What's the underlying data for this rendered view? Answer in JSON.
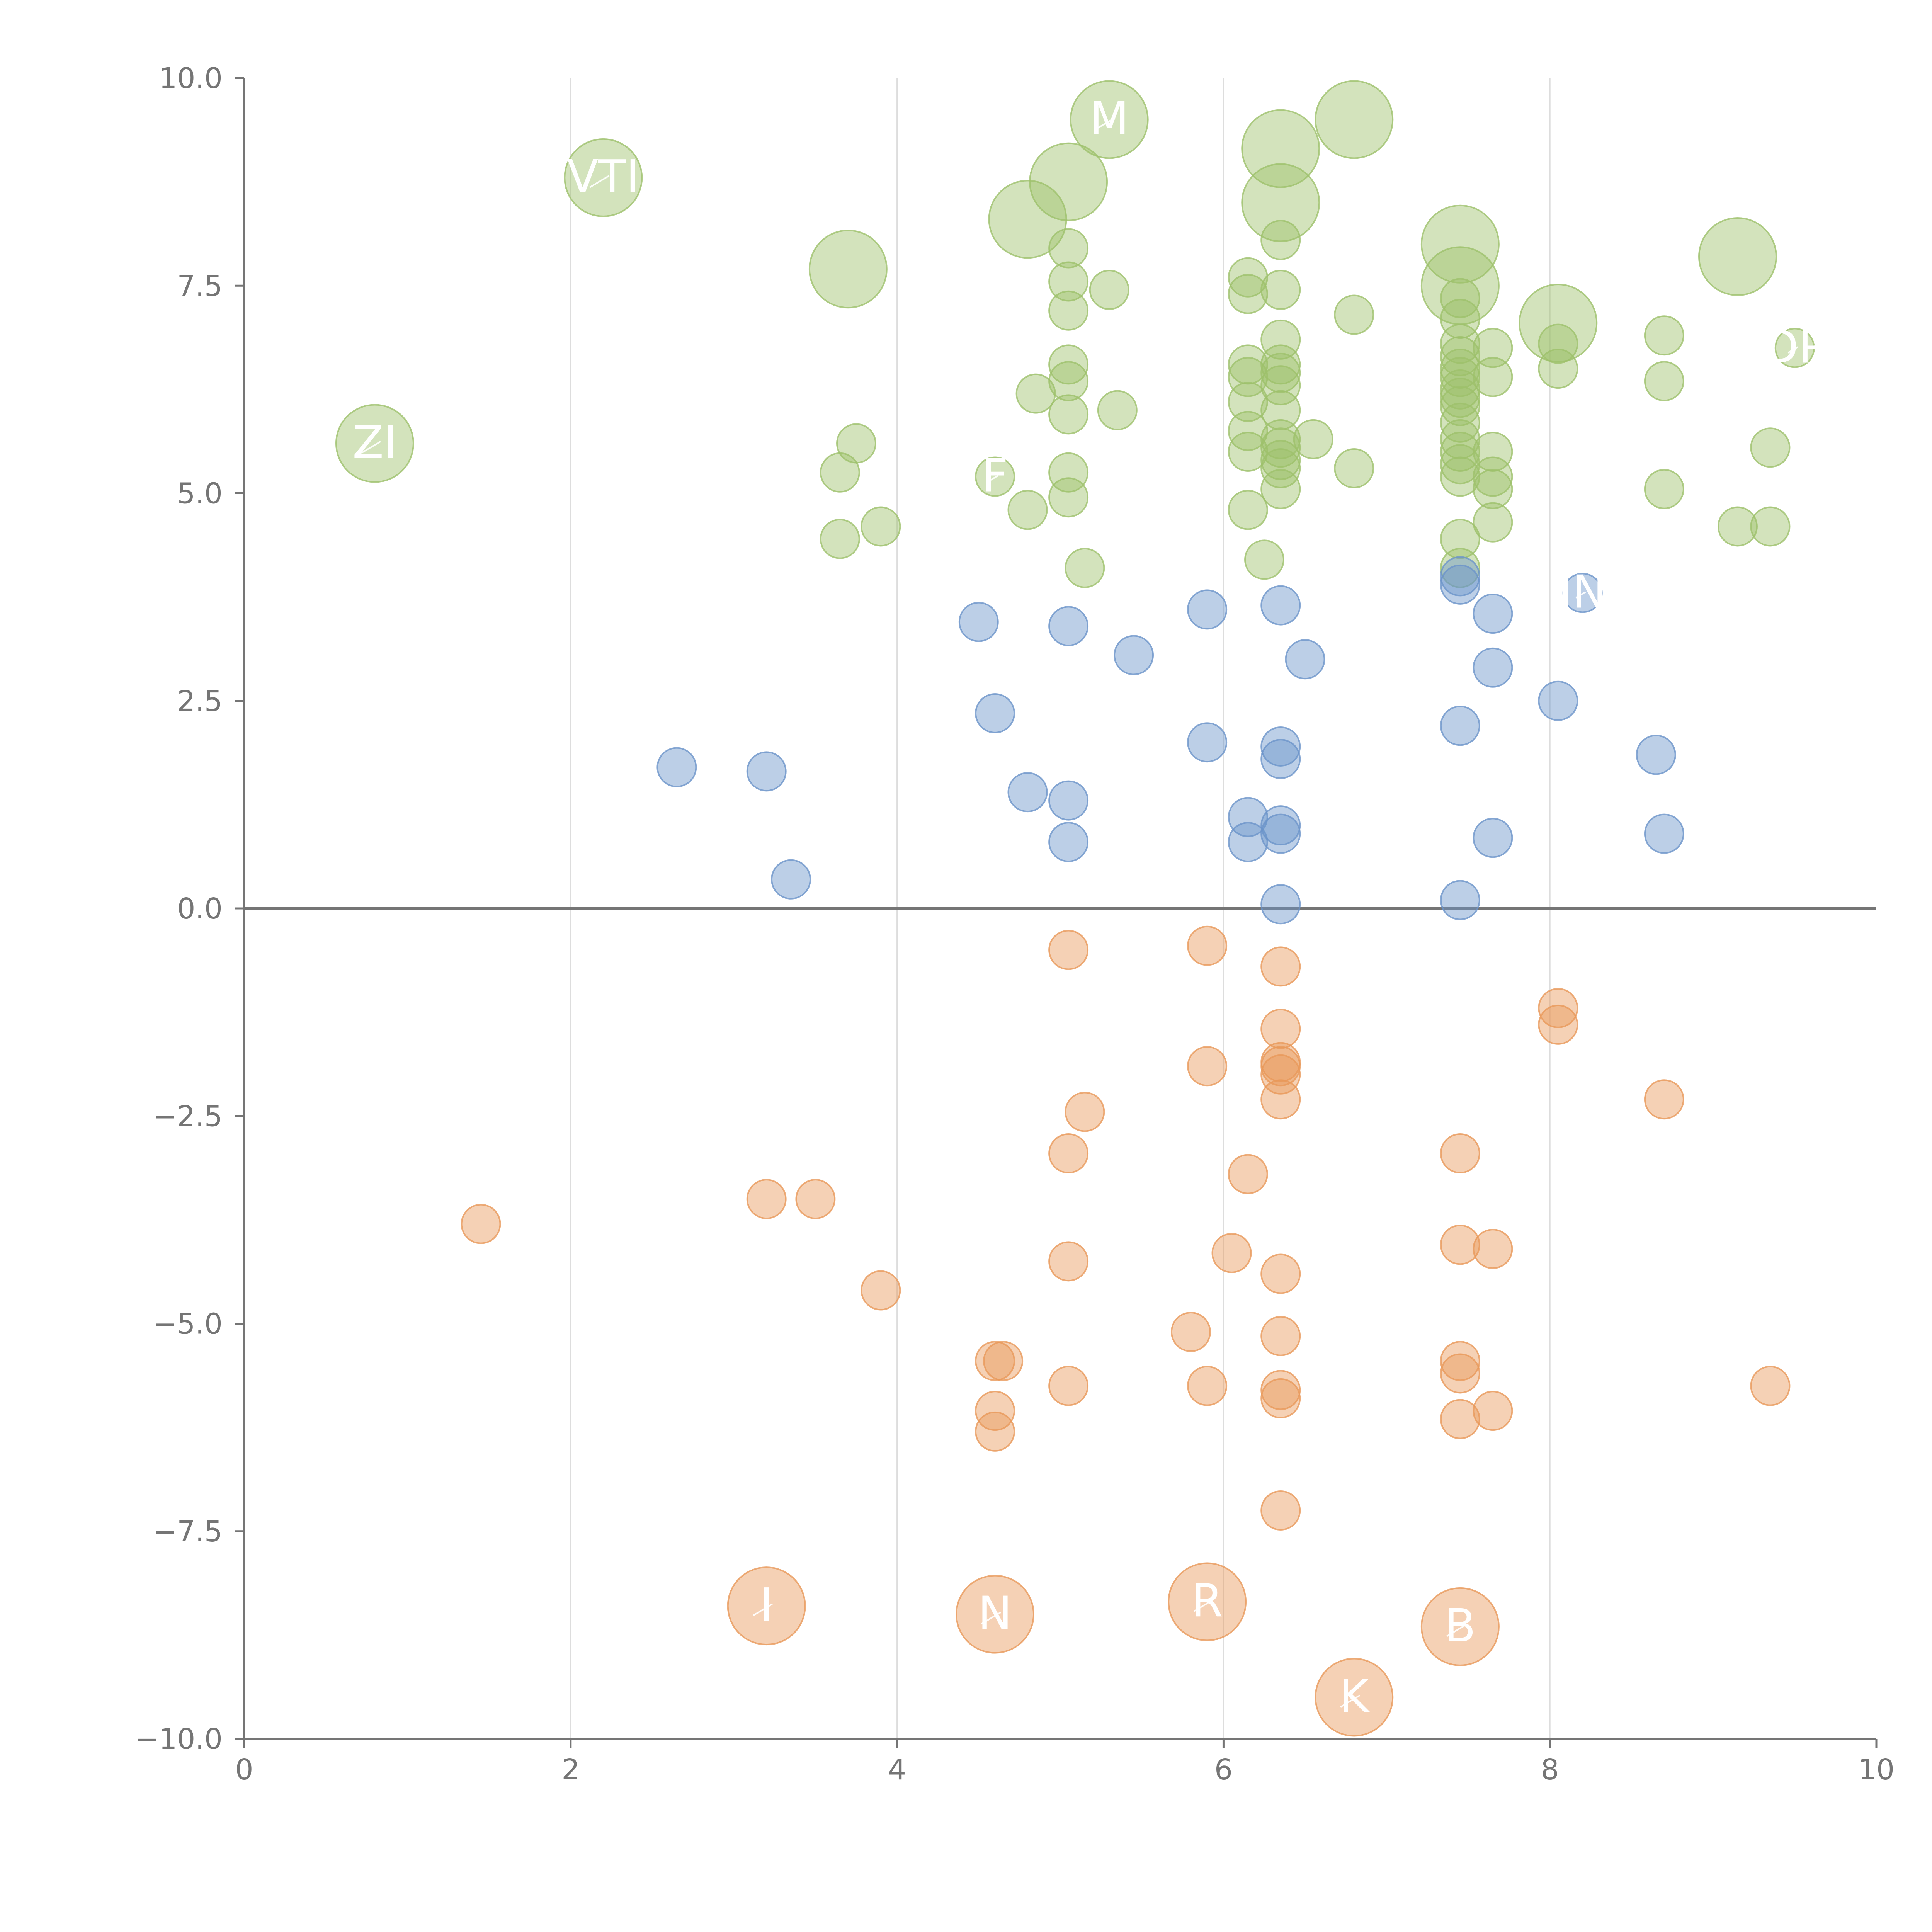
{
  "chart_data": {
    "type": "scatter",
    "title": "",
    "xlabel": "",
    "ylabel": "",
    "xlim": [
      0,
      10
    ],
    "ylim": [
      -10,
      10
    ],
    "grid": "vertical gridlines at x ticks",
    "zero_line": true,
    "x_ticks": [
      "0",
      "2",
      "4",
      "6",
      "8",
      "10"
    ],
    "y_ticks": [
      "10.0",
      "7.5",
      "5.0",
      "2.5",
      "0.0",
      "−2.5",
      "−5.0",
      "−7.5",
      "−10.0"
    ],
    "colors": {
      "green": "#9dc16b",
      "blue": "#6b94c9",
      "orange": "#e8995a",
      "axis": "#757575",
      "grid": "#dddddd",
      "label": "#ffffff"
    },
    "series": [
      {
        "color": "green",
        "points": [
          {
            "x": 0.8,
            "y": 5.6,
            "size": "large",
            "label": "ZI"
          },
          {
            "x": 2.2,
            "y": 8.8,
            "size": "large",
            "label": "VTI"
          },
          {
            "x": 3.7,
            "y": 7.7,
            "size": "large"
          },
          {
            "x": 3.65,
            "y": 5.25,
            "size": "small"
          },
          {
            "x": 3.75,
            "y": 5.6,
            "size": "small"
          },
          {
            "x": 3.65,
            "y": 4.45,
            "size": "small"
          },
          {
            "x": 3.9,
            "y": 4.6,
            "size": "small"
          },
          {
            "x": 4.6,
            "y": 5.2,
            "size": "small",
            "label": "F"
          },
          {
            "x": 4.8,
            "y": 4.8,
            "size": "small"
          },
          {
            "x": 4.85,
            "y": 6.2,
            "size": "small"
          },
          {
            "x": 4.8,
            "y": 8.3,
            "size": "large"
          },
          {
            "x": 5.05,
            "y": 8.75,
            "size": "large"
          },
          {
            "x": 5.3,
            "y": 9.5,
            "size": "large",
            "label": "M"
          },
          {
            "x": 5.05,
            "y": 7.95,
            "size": "small"
          },
          {
            "x": 5.05,
            "y": 7.55,
            "size": "small"
          },
          {
            "x": 5.05,
            "y": 7.2,
            "size": "small"
          },
          {
            "x": 5.3,
            "y": 7.45,
            "size": "small"
          },
          {
            "x": 5.05,
            "y": 6.55,
            "size": "small"
          },
          {
            "x": 5.05,
            "y": 6.35,
            "size": "small"
          },
          {
            "x": 5.05,
            "y": 5.95,
            "size": "small"
          },
          {
            "x": 5.35,
            "y": 6.0,
            "size": "small"
          },
          {
            "x": 5.05,
            "y": 5.25,
            "size": "small"
          },
          {
            "x": 5.05,
            "y": 4.95,
            "size": "small"
          },
          {
            "x": 5.15,
            "y": 4.1,
            "size": "small"
          },
          {
            "x": 6.15,
            "y": 7.6,
            "size": "small"
          },
          {
            "x": 6.15,
            "y": 7.4,
            "size": "small"
          },
          {
            "x": 6.15,
            "y": 6.55,
            "size": "small"
          },
          {
            "x": 6.15,
            "y": 6.4,
            "size": "small"
          },
          {
            "x": 6.15,
            "y": 6.1,
            "size": "small"
          },
          {
            "x": 6.15,
            "y": 5.75,
            "size": "small"
          },
          {
            "x": 6.15,
            "y": 5.5,
            "size": "small"
          },
          {
            "x": 6.15,
            "y": 4.8,
            "size": "small"
          },
          {
            "x": 6.25,
            "y": 4.2,
            "size": "small"
          },
          {
            "x": 6.35,
            "y": 9.15,
            "size": "large"
          },
          {
            "x": 6.35,
            "y": 8.5,
            "size": "large"
          },
          {
            "x": 6.35,
            "y": 8.05,
            "size": "small"
          },
          {
            "x": 6.35,
            "y": 7.45,
            "size": "small"
          },
          {
            "x": 6.35,
            "y": 6.85,
            "size": "small"
          },
          {
            "x": 6.35,
            "y": 6.55,
            "size": "small"
          },
          {
            "x": 6.35,
            "y": 6.45,
            "size": "small"
          },
          {
            "x": 6.35,
            "y": 6.3,
            "size": "small"
          },
          {
            "x": 6.35,
            "y": 6.0,
            "size": "small"
          },
          {
            "x": 6.35,
            "y": 5.65,
            "size": "small"
          },
          {
            "x": 6.35,
            "y": 5.55,
            "size": "small"
          },
          {
            "x": 6.35,
            "y": 5.4,
            "size": "small"
          },
          {
            "x": 6.35,
            "y": 5.3,
            "size": "small"
          },
          {
            "x": 6.35,
            "y": 5.05,
            "size": "small"
          },
          {
            "x": 6.55,
            "y": 5.65,
            "size": "small"
          },
          {
            "x": 6.8,
            "y": 9.5,
            "size": "large"
          },
          {
            "x": 6.8,
            "y": 7.15,
            "size": "small"
          },
          {
            "x": 6.8,
            "y": 5.3,
            "size": "small"
          },
          {
            "x": 7.45,
            "y": 8.0,
            "size": "large"
          },
          {
            "x": 7.45,
            "y": 7.5,
            "size": "large"
          },
          {
            "x": 7.45,
            "y": 7.35,
            "size": "small"
          },
          {
            "x": 7.45,
            "y": 7.1,
            "size": "small"
          },
          {
            "x": 7.45,
            "y": 6.8,
            "size": "small"
          },
          {
            "x": 7.45,
            "y": 6.65,
            "size": "small"
          },
          {
            "x": 7.45,
            "y": 6.5,
            "size": "small"
          },
          {
            "x": 7.45,
            "y": 6.4,
            "size": "small"
          },
          {
            "x": 7.45,
            "y": 6.25,
            "size": "small"
          },
          {
            "x": 7.45,
            "y": 6.15,
            "size": "small"
          },
          {
            "x": 7.45,
            "y": 6.05,
            "size": "small"
          },
          {
            "x": 7.45,
            "y": 5.85,
            "size": "small"
          },
          {
            "x": 7.45,
            "y": 5.65,
            "size": "small"
          },
          {
            "x": 7.45,
            "y": 5.5,
            "size": "small"
          },
          {
            "x": 7.45,
            "y": 5.35,
            "size": "small"
          },
          {
            "x": 7.45,
            "y": 5.2,
            "size": "small"
          },
          {
            "x": 7.45,
            "y": 4.45,
            "size": "small"
          },
          {
            "x": 7.45,
            "y": 4.1,
            "size": "small"
          },
          {
            "x": 7.65,
            "y": 6.75,
            "size": "small"
          },
          {
            "x": 7.65,
            "y": 6.4,
            "size": "small"
          },
          {
            "x": 7.65,
            "y": 5.5,
            "size": "small"
          },
          {
            "x": 7.65,
            "y": 5.2,
            "size": "small"
          },
          {
            "x": 7.65,
            "y": 5.05,
            "size": "small"
          },
          {
            "x": 7.65,
            "y": 4.65,
            "size": "small"
          },
          {
            "x": 8.05,
            "y": 7.05,
            "size": "large"
          },
          {
            "x": 8.05,
            "y": 6.8,
            "size": "small"
          },
          {
            "x": 8.05,
            "y": 6.5,
            "size": "small"
          },
          {
            "x": 8.7,
            "y": 6.9,
            "size": "small"
          },
          {
            "x": 8.7,
            "y": 6.35,
            "size": "small"
          },
          {
            "x": 8.7,
            "y": 5.05,
            "size": "small"
          },
          {
            "x": 9.15,
            "y": 7.85,
            "size": "large"
          },
          {
            "x": 9.15,
            "y": 4.6,
            "size": "small"
          },
          {
            "x": 9.35,
            "y": 5.55,
            "size": "small"
          },
          {
            "x": 9.35,
            "y": 4.6,
            "size": "small"
          },
          {
            "x": 9.5,
            "y": 6.75,
            "size": "small",
            "label": "DP"
          }
        ]
      },
      {
        "color": "blue",
        "points": [
          {
            "x": 2.65,
            "y": 1.7,
            "size": "small"
          },
          {
            "x": 3.2,
            "y": 1.65,
            "size": "small"
          },
          {
            "x": 3.35,
            "y": 0.35,
            "size": "small"
          },
          {
            "x": 4.5,
            "y": 3.45,
            "size": "small"
          },
          {
            "x": 4.6,
            "y": 2.35,
            "size": "small"
          },
          {
            "x": 4.8,
            "y": 1.4,
            "size": "small"
          },
          {
            "x": 5.05,
            "y": 3.4,
            "size": "small"
          },
          {
            "x": 5.05,
            "y": 1.3,
            "size": "small"
          },
          {
            "x": 5.05,
            "y": 0.8,
            "size": "small"
          },
          {
            "x": 5.45,
            "y": 3.05,
            "size": "small"
          },
          {
            "x": 5.9,
            "y": 3.6,
            "size": "small"
          },
          {
            "x": 5.9,
            "y": 2.0,
            "size": "small"
          },
          {
            "x": 6.15,
            "y": 1.1,
            "size": "small"
          },
          {
            "x": 6.15,
            "y": 0.8,
            "size": "small"
          },
          {
            "x": 6.35,
            "y": 3.65,
            "size": "small"
          },
          {
            "x": 6.35,
            "y": 1.95,
            "size": "small"
          },
          {
            "x": 6.35,
            "y": 1.8,
            "size": "small"
          },
          {
            "x": 6.35,
            "y": 1.0,
            "size": "small"
          },
          {
            "x": 6.35,
            "y": 0.9,
            "size": "small"
          },
          {
            "x": 6.35,
            "y": 0.05,
            "size": "small"
          },
          {
            "x": 6.5,
            "y": 3.0,
            "size": "small"
          },
          {
            "x": 7.45,
            "y": 4.0,
            "size": "small"
          },
          {
            "x": 7.45,
            "y": 3.9,
            "size": "small"
          },
          {
            "x": 7.45,
            "y": 2.2,
            "size": "small"
          },
          {
            "x": 7.45,
            "y": 0.1,
            "size": "small"
          },
          {
            "x": 7.65,
            "y": 3.55,
            "size": "small"
          },
          {
            "x": 7.65,
            "y": 2.9,
            "size": "small"
          },
          {
            "x": 7.65,
            "y": 0.85,
            "size": "small"
          },
          {
            "x": 8.05,
            "y": 2.5,
            "size": "small"
          },
          {
            "x": 8.2,
            "y": 3.8,
            "size": "small",
            "label": "IN"
          },
          {
            "x": 8.65,
            "y": 1.85,
            "size": "small"
          },
          {
            "x": 8.7,
            "y": 0.9,
            "size": "small"
          }
        ]
      },
      {
        "color": "orange",
        "points": [
          {
            "x": 1.45,
            "y": -3.8,
            "size": "small"
          },
          {
            "x": 3.2,
            "y": -3.5,
            "size": "small"
          },
          {
            "x": 3.5,
            "y": -3.5,
            "size": "small"
          },
          {
            "x": 3.9,
            "y": -4.6,
            "size": "small"
          },
          {
            "x": 3.2,
            "y": -8.4,
            "size": "large",
            "label": "I"
          },
          {
            "x": 4.6,
            "y": -5.45,
            "size": "small"
          },
          {
            "x": 4.65,
            "y": -5.45,
            "size": "small"
          },
          {
            "x": 4.6,
            "y": -6.05,
            "size": "small"
          },
          {
            "x": 4.6,
            "y": -6.3,
            "size": "small"
          },
          {
            "x": 4.6,
            "y": -8.5,
            "size": "large",
            "label": "N"
          },
          {
            "x": 5.05,
            "y": -0.5,
            "size": "small"
          },
          {
            "x": 5.05,
            "y": -2.95,
            "size": "small"
          },
          {
            "x": 5.05,
            "y": -4.25,
            "size": "small"
          },
          {
            "x": 5.05,
            "y": -5.75,
            "size": "small"
          },
          {
            "x": 5.15,
            "y": -2.45,
            "size": "small"
          },
          {
            "x": 5.8,
            "y": -5.1,
            "size": "small"
          },
          {
            "x": 5.9,
            "y": -0.45,
            "size": "small"
          },
          {
            "x": 5.9,
            "y": -1.9,
            "size": "small"
          },
          {
            "x": 5.9,
            "y": -5.75,
            "size": "small"
          },
          {
            "x": 5.9,
            "y": -8.35,
            "size": "large",
            "label": "R"
          },
          {
            "x": 6.05,
            "y": -4.15,
            "size": "small"
          },
          {
            "x": 6.15,
            "y": -3.2,
            "size": "small"
          },
          {
            "x": 6.35,
            "y": -0.7,
            "size": "small"
          },
          {
            "x": 6.35,
            "y": -1.45,
            "size": "small"
          },
          {
            "x": 6.35,
            "y": -1.85,
            "size": "small"
          },
          {
            "x": 6.35,
            "y": -1.9,
            "size": "small"
          },
          {
            "x": 6.35,
            "y": -2.0,
            "size": "small"
          },
          {
            "x": 6.35,
            "y": -2.3,
            "size": "small"
          },
          {
            "x": 6.35,
            "y": -4.4,
            "size": "small"
          },
          {
            "x": 6.35,
            "y": -5.15,
            "size": "small"
          },
          {
            "x": 6.35,
            "y": -5.8,
            "size": "small"
          },
          {
            "x": 6.35,
            "y": -5.9,
            "size": "small"
          },
          {
            "x": 6.35,
            "y": -7.25,
            "size": "small"
          },
          {
            "x": 6.8,
            "y": -9.5,
            "size": "large",
            "label": "K"
          },
          {
            "x": 7.45,
            "y": -2.95,
            "size": "small"
          },
          {
            "x": 7.45,
            "y": -4.05,
            "size": "small"
          },
          {
            "x": 7.45,
            "y": -5.45,
            "size": "small"
          },
          {
            "x": 7.45,
            "y": -5.6,
            "size": "small"
          },
          {
            "x": 7.45,
            "y": -6.15,
            "size": "small"
          },
          {
            "x": 7.45,
            "y": -8.65,
            "size": "large",
            "label": "B"
          },
          {
            "x": 7.65,
            "y": -4.1,
            "size": "small"
          },
          {
            "x": 7.65,
            "y": -6.05,
            "size": "small"
          },
          {
            "x": 8.05,
            "y": -1.2,
            "size": "small"
          },
          {
            "x": 8.05,
            "y": -1.4,
            "size": "small"
          },
          {
            "x": 8.7,
            "y": -2.3,
            "size": "small"
          },
          {
            "x": 9.35,
            "y": -5.75,
            "size": "small"
          }
        ]
      }
    ]
  }
}
